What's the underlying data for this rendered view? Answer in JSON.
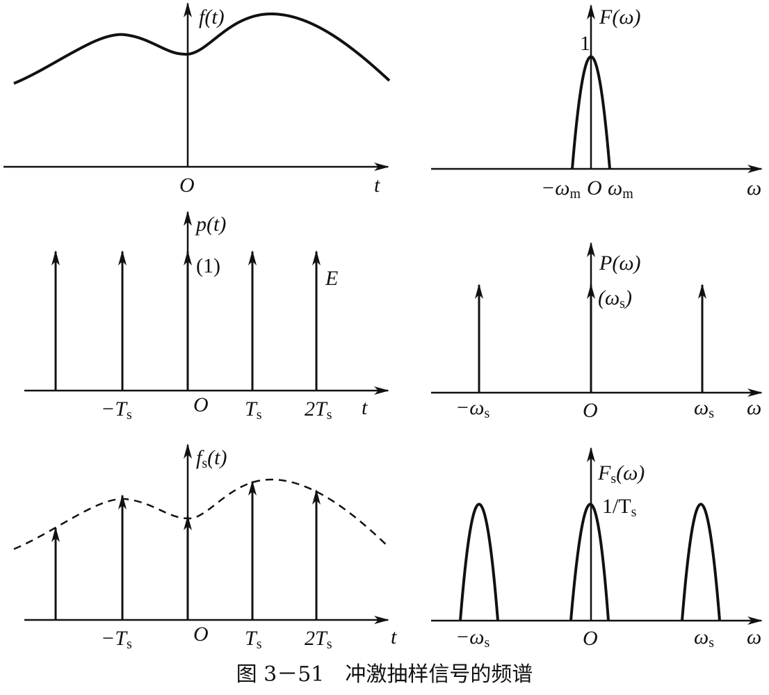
{
  "panels": {
    "f_time": {
      "ylabel": "f(t)",
      "origin": "O",
      "xlabel": "t"
    },
    "F_freq": {
      "ylabel": "F(ω)",
      "peak": "1",
      "neg_wm": "−ω",
      "neg_wm_sub": "m",
      "origin": "O",
      "wm": "ω",
      "wm_sub": "m",
      "xlabel": "ω"
    },
    "p_time": {
      "ylabel": "p(t)",
      "weight": "(1)",
      "amp": "E",
      "neg_ts": "−T",
      "ts": "T",
      "two_ts": "2T",
      "ts_sub": "s",
      "origin": "O",
      "xlabel": "t"
    },
    "P_freq": {
      "ylabel": "P(ω)",
      "weight_open": "(ω",
      "weight_sub": "s",
      "weight_close": ")",
      "neg_ws": "−ω",
      "ws": "ω",
      "ws_sub": "s",
      "origin": "O",
      "xlabel": "ω"
    },
    "fs_time": {
      "ylabel_main": "f",
      "ylabel_sub": "s",
      "ylabel_arg": "(t)",
      "neg_ts": "−T",
      "ts": "T",
      "two_ts": "2T",
      "ts_sub": "s",
      "origin": "O",
      "xlabel": "t"
    },
    "Fs_freq": {
      "ylabel_main": "F",
      "ylabel_sub": "s",
      "ylabel_arg": "(ω)",
      "peak_main": "1/T",
      "peak_sub": "s",
      "neg_ws": "−ω",
      "ws": "ω",
      "ws_sub": "s",
      "origin": "O",
      "xlabel": "ω"
    }
  },
  "caption": "图 3－51　冲激抽样信号的频谱",
  "icons": {
    "arrow": "axis-arrow-icon"
  }
}
